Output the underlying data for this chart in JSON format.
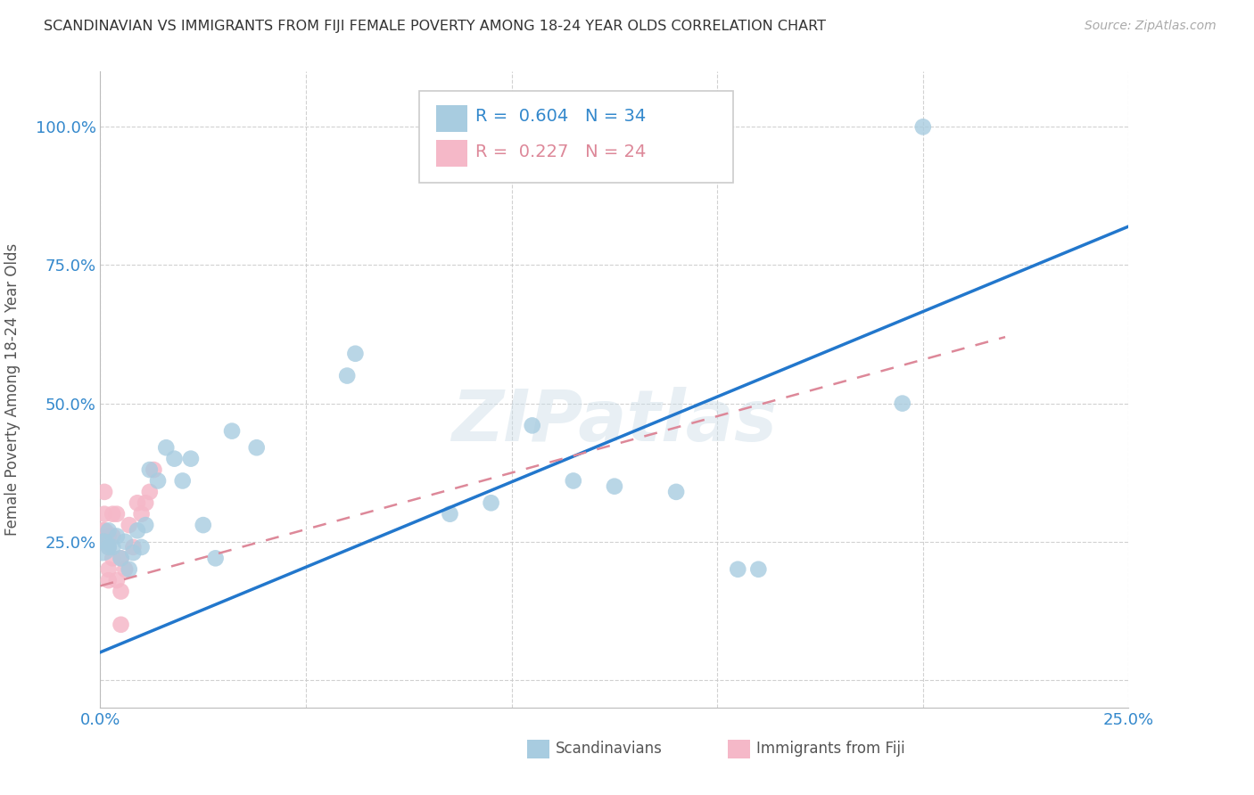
{
  "title": "SCANDINAVIAN VS IMMIGRANTS FROM FIJI FEMALE POVERTY AMONG 18-24 YEAR OLDS CORRELATION CHART",
  "source": "Source: ZipAtlas.com",
  "ylabel": "Female Poverty Among 18-24 Year Olds",
  "xlim": [
    0.0,
    0.25
  ],
  "ylim": [
    -0.05,
    1.1
  ],
  "xticks": [
    0.0,
    0.05,
    0.1,
    0.15,
    0.2,
    0.25
  ],
  "yticks": [
    0.0,
    0.25,
    0.5,
    0.75,
    1.0
  ],
  "xticklabels": [
    "0.0%",
    "",
    "",
    "",
    "",
    "25.0%"
  ],
  "yticklabels": [
    "",
    "25.0%",
    "50.0%",
    "75.0%",
    "100.0%"
  ],
  "scandinavians_R": 0.604,
  "scandinavians_N": 34,
  "fiji_R": 0.227,
  "fiji_N": 24,
  "legend_labels": [
    "Scandinavians",
    "Immigrants from Fiji"
  ],
  "scand_color": "#a8cce0",
  "fiji_color": "#f5b8c8",
  "scand_line_color": "#2277cc",
  "fiji_line_color": "#dd8899",
  "watermark": "ZIPatlas",
  "scand_line_x0": 0.0,
  "scand_line_y0": 0.05,
  "scand_line_x1": 0.25,
  "scand_line_y1": 0.82,
  "fiji_line_x0": 0.0,
  "fiji_line_y0": 0.17,
  "fiji_line_x1": 0.22,
  "fiji_line_y1": 0.62,
  "scandinavians_x": [
    0.001,
    0.002,
    0.002,
    0.003,
    0.004,
    0.005,
    0.006,
    0.007,
    0.008,
    0.009,
    0.01,
    0.011,
    0.012,
    0.014,
    0.016,
    0.018,
    0.02,
    0.022,
    0.025,
    0.028,
    0.032,
    0.038,
    0.06,
    0.062,
    0.085,
    0.095,
    0.105,
    0.115,
    0.125,
    0.14,
    0.155,
    0.16,
    0.195,
    0.2
  ],
  "scandinavians_y": [
    0.25,
    0.27,
    0.24,
    0.24,
    0.26,
    0.22,
    0.25,
    0.2,
    0.23,
    0.27,
    0.24,
    0.28,
    0.38,
    0.36,
    0.42,
    0.4,
    0.36,
    0.4,
    0.28,
    0.22,
    0.45,
    0.42,
    0.55,
    0.59,
    0.3,
    0.32,
    0.46,
    0.36,
    0.35,
    0.34,
    0.2,
    0.2,
    0.5,
    1.0
  ],
  "fiji_x": [
    0.001,
    0.001,
    0.001,
    0.001,
    0.002,
    0.002,
    0.002,
    0.002,
    0.003,
    0.003,
    0.003,
    0.004,
    0.004,
    0.005,
    0.005,
    0.005,
    0.006,
    0.007,
    0.008,
    0.009,
    0.01,
    0.011,
    0.012,
    0.013
  ],
  "fiji_y": [
    0.25,
    0.27,
    0.3,
    0.34,
    0.18,
    0.2,
    0.24,
    0.26,
    0.22,
    0.26,
    0.3,
    0.18,
    0.3,
    0.1,
    0.16,
    0.22,
    0.2,
    0.28,
    0.24,
    0.32,
    0.3,
    0.32,
    0.34,
    0.38
  ],
  "scand_large_x": [
    0.001
  ],
  "scand_large_y": [
    0.25
  ],
  "fiji_large_x": [
    0.001
  ],
  "fiji_large_y": [
    0.27
  ]
}
